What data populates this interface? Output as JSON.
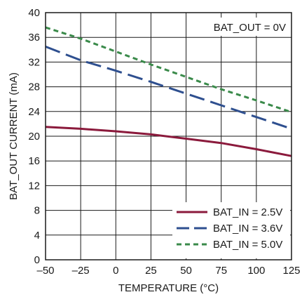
{
  "chart_data": {
    "type": "line",
    "xlabel": "TEMPERATURE (°C)",
    "ylabel": "BAT_OUT CURRENT (mA)",
    "xlim": [
      -50,
      125
    ],
    "ylim": [
      0,
      40
    ],
    "x_ticks": [
      -50,
      -25,
      0,
      25,
      50,
      75,
      100,
      125
    ],
    "x_tick_labels": [
      "–50",
      "–25",
      "0",
      "25",
      "50",
      "75",
      "100",
      "125"
    ],
    "y_ticks": [
      0,
      4,
      8,
      12,
      16,
      20,
      24,
      28,
      32,
      36,
      40
    ],
    "y_tick_labels": [
      "0",
      "4",
      "8",
      "12",
      "16",
      "20",
      "24",
      "28",
      "32",
      "36",
      "40"
    ],
    "grid": true,
    "legend_position": "bottom-right",
    "annotation": "BAT_OUT = 0V",
    "series": [
      {
        "name": "BAT_IN = 2.5V",
        "color": "#8b1a3c",
        "dash": "solid",
        "x": [
          -50,
          -25,
          0,
          25,
          50,
          75,
          100,
          125
        ],
        "y": [
          21.5,
          21.2,
          20.8,
          20.3,
          19.6,
          18.9,
          17.9,
          16.8
        ]
      },
      {
        "name": "BAT_IN = 3.6V",
        "color": "#2e4f8f",
        "dash": "long",
        "x": [
          -50,
          -25,
          0,
          25,
          50,
          75,
          100,
          125
        ],
        "y": [
          34.5,
          32.3,
          30.6,
          28.8,
          26.9,
          25.0,
          23.1,
          21.2
        ]
      },
      {
        "name": "BAT_IN = 5.0V",
        "color": "#3a8a4a",
        "dash": "short",
        "x": [
          -50,
          -25,
          0,
          25,
          50,
          75,
          100,
          125
        ],
        "y": [
          37.6,
          35.8,
          33.7,
          31.6,
          29.6,
          27.6,
          25.8,
          23.9
        ]
      }
    ]
  }
}
